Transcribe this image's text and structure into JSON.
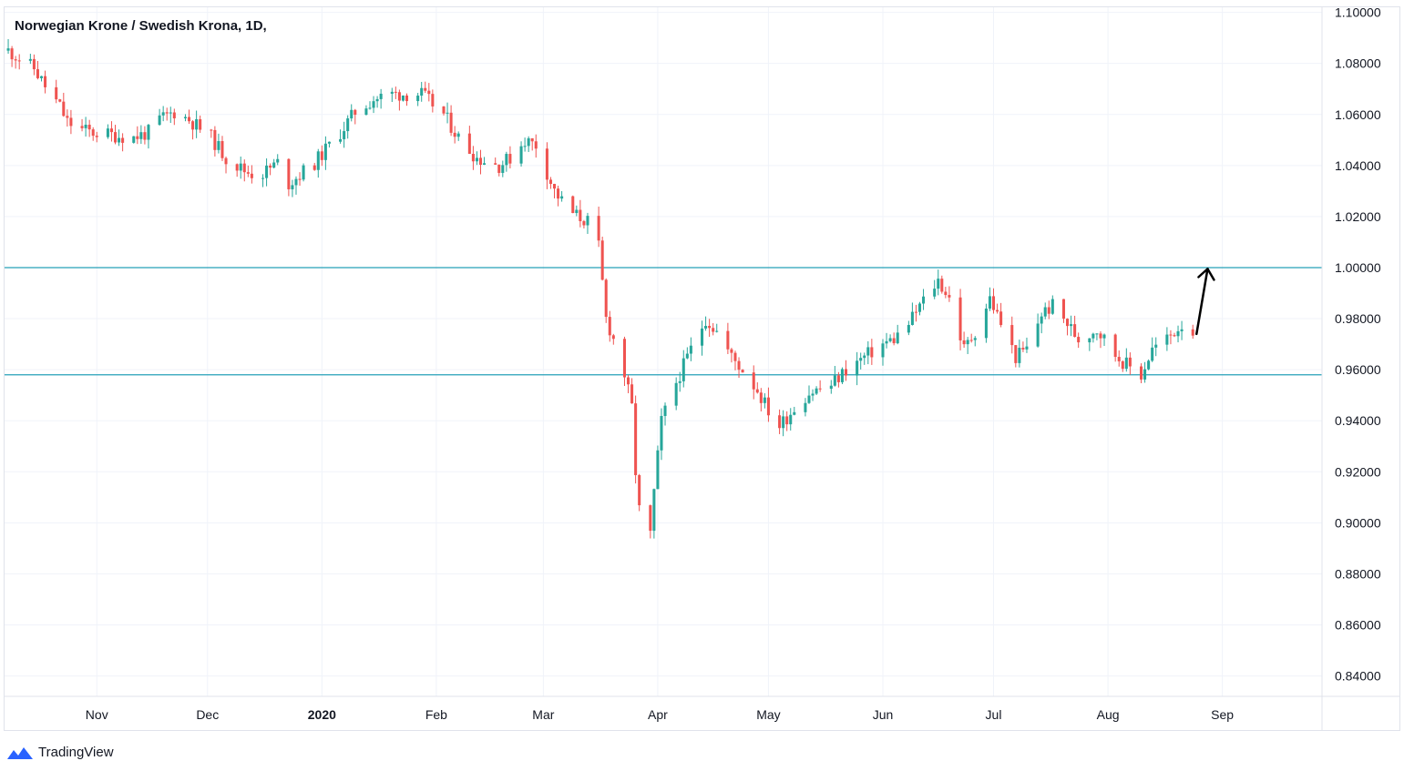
{
  "header": {
    "title": "Norwegian Krone / Swedish Krona, 1D,"
  },
  "brand": {
    "name": "TradingView",
    "color": "#2962ff"
  },
  "colors": {
    "up": "#26a69a",
    "down": "#ef5350",
    "level": "#26a0b8",
    "arrow": "#000000"
  },
  "chart_data": {
    "type": "candlestick",
    "title": "Norwegian Krone / Swedish Krona, 1D,",
    "ylim": [
      0.832,
      1.102
    ],
    "y_ticks": [
      "1.10000",
      "1.08000",
      "1.06000",
      "1.04000",
      "1.02000",
      "1.00000",
      "0.98000",
      "0.96000",
      "0.94000",
      "0.92000",
      "0.90000",
      "0.88000",
      "0.86000",
      "0.84000"
    ],
    "x_ticks": [
      {
        "label": "Nov",
        "date": "2019-11-01",
        "bold": false
      },
      {
        "label": "Dec",
        "date": "2019-12-01",
        "bold": false
      },
      {
        "label": "2020",
        "date": "2020-01-01",
        "bold": true
      },
      {
        "label": "Feb",
        "date": "2020-02-01",
        "bold": false
      },
      {
        "label": "Mar",
        "date": "2020-03-01",
        "bold": false
      },
      {
        "label": "Apr",
        "date": "2020-04-01",
        "bold": false
      },
      {
        "label": "May",
        "date": "2020-05-01",
        "bold": false
      },
      {
        "label": "Jun",
        "date": "2020-06-01",
        "bold": false
      },
      {
        "label": "Jul",
        "date": "2020-07-01",
        "bold": false
      },
      {
        "label": "Aug",
        "date": "2020-08-01",
        "bold": false
      },
      {
        "label": "Sep",
        "date": "2020-09-01",
        "bold": false
      }
    ],
    "x_range": [
      "2019-10-07",
      "2020-09-28"
    ],
    "horizontal_levels": [
      1.0,
      0.958
    ],
    "arrow": {
      "from": [
        "2020-08-25",
        0.974
      ],
      "to": [
        "2020-08-28",
        0.9995
      ]
    },
    "closes": [
      [
        "2019-10-08",
        1.085
      ],
      [
        "2019-10-11",
        1.082
      ],
      [
        "2019-10-15",
        1.078
      ],
      [
        "2019-10-18",
        1.071
      ],
      [
        "2019-10-22",
        1.063
      ],
      [
        "2019-10-24",
        1.057
      ],
      [
        "2019-10-28",
        1.054
      ],
      [
        "2019-10-31",
        1.053
      ],
      [
        "2019-11-05",
        1.052
      ],
      [
        "2019-11-11",
        1.051
      ],
      [
        "2019-11-15",
        1.053
      ],
      [
        "2019-11-18",
        1.058
      ],
      [
        "2019-11-22",
        1.061
      ],
      [
        "2019-11-26",
        1.058
      ],
      [
        "2019-12-02",
        1.051
      ],
      [
        "2019-12-06",
        1.043
      ],
      [
        "2019-12-11",
        1.038
      ],
      [
        "2019-12-15",
        1.036
      ],
      [
        "2019-12-20",
        1.041
      ],
      [
        "2019-12-23",
        1.033
      ],
      [
        "2019-12-30",
        1.041
      ],
      [
        "2020-01-06",
        1.053
      ],
      [
        "2020-01-10",
        1.061
      ],
      [
        "2020-01-15",
        1.066
      ],
      [
        "2020-01-20",
        1.068
      ],
      [
        "2020-01-24",
        1.068
      ],
      [
        "2020-01-28",
        1.068
      ],
      [
        "2020-02-03",
        1.06
      ],
      [
        "2020-02-07",
        1.051
      ],
      [
        "2020-02-12",
        1.043
      ],
      [
        "2020-02-18",
        1.04
      ],
      [
        "2020-02-21",
        1.043
      ],
      [
        "2020-02-25",
        1.05
      ],
      [
        "2020-02-28",
        1.048
      ],
      [
        "2020-03-04",
        1.03
      ],
      [
        "2020-03-08",
        1.022
      ],
      [
        "2020-03-13",
        1.018
      ],
      [
        "2020-03-16",
        1.008
      ],
      [
        "2020-03-18",
        0.98
      ],
      [
        "2020-03-20",
        0.972
      ],
      [
        "2020-03-23",
        0.958
      ],
      [
        "2020-03-25",
        0.945
      ],
      [
        "2020-03-26",
        0.92
      ],
      [
        "2020-03-27",
        0.905
      ],
      [
        "2020-03-30",
        0.895
      ],
      [
        "2020-03-31",
        0.912
      ],
      [
        "2020-04-02",
        0.94
      ],
      [
        "2020-04-06",
        0.955
      ],
      [
        "2020-04-10",
        0.968
      ],
      [
        "2020-04-14",
        0.98
      ],
      [
        "2020-04-17",
        0.975
      ],
      [
        "2020-04-21",
        0.965
      ],
      [
        "2020-04-24",
        0.96
      ],
      [
        "2020-04-28",
        0.952
      ],
      [
        "2020-05-01",
        0.944
      ],
      [
        "2020-05-04",
        0.938
      ],
      [
        "2020-05-08",
        0.945
      ],
      [
        "2020-05-12",
        0.951
      ],
      [
        "2020-05-18",
        0.954
      ],
      [
        "2020-05-22",
        0.96
      ],
      [
        "2020-05-27",
        0.965
      ],
      [
        "2020-06-01",
        0.97
      ],
      [
        "2020-06-04",
        0.972
      ],
      [
        "2020-06-08",
        0.978
      ],
      [
        "2020-06-11",
        0.985
      ],
      [
        "2020-06-16",
        0.995
      ],
      [
        "2020-06-19",
        0.988
      ],
      [
        "2020-06-23",
        0.968
      ],
      [
        "2020-06-26",
        0.975
      ],
      [
        "2020-06-30",
        0.988
      ],
      [
        "2020-07-03",
        0.978
      ],
      [
        "2020-07-07",
        0.965
      ],
      [
        "2020-07-10",
        0.968
      ],
      [
        "2020-07-14",
        0.982
      ],
      [
        "2020-07-17",
        0.985
      ],
      [
        "2020-07-21",
        0.978
      ],
      [
        "2020-07-24",
        0.972
      ],
      [
        "2020-07-29",
        0.976
      ],
      [
        "2020-08-03",
        0.966
      ],
      [
        "2020-08-06",
        0.962
      ],
      [
        "2020-08-10",
        0.958
      ],
      [
        "2020-08-13",
        0.968
      ],
      [
        "2020-08-17",
        0.972
      ],
      [
        "2020-08-21",
        0.978
      ],
      [
        "2020-08-24",
        0.975
      ]
    ]
  }
}
